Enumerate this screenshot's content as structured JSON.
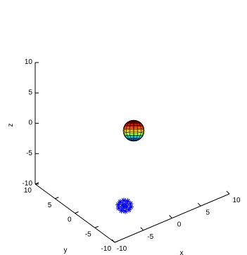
{
  "chart_data": {
    "type": "scatter3d",
    "title": "",
    "xlabel": "x",
    "ylabel": "y",
    "zlabel": "z",
    "xlim": [
      -10,
      10
    ],
    "ylim": [
      -10,
      10
    ],
    "zlim": [
      -10,
      10
    ],
    "x_ticks": [
      "-10",
      "-5",
      "0",
      "5",
      "10"
    ],
    "y_ticks": [
      "10",
      "5",
      "0",
      "-5",
      "-10"
    ],
    "z_ticks": [
      "10",
      "5",
      "0",
      "-5",
      "-10"
    ],
    "grid": false,
    "box": false,
    "objects": [
      {
        "name": "",
        "kind": "sphere-surface",
        "center": [
          0,
          0,
          0
        ],
        "radius": 2,
        "colormap": "jet"
      },
      {
        "name": "",
        "kind": "marker-cluster",
        "marker": "*",
        "color": "#0000ff",
        "center": [
          0,
          0,
          -10
        ],
        "count": 14
      }
    ]
  }
}
